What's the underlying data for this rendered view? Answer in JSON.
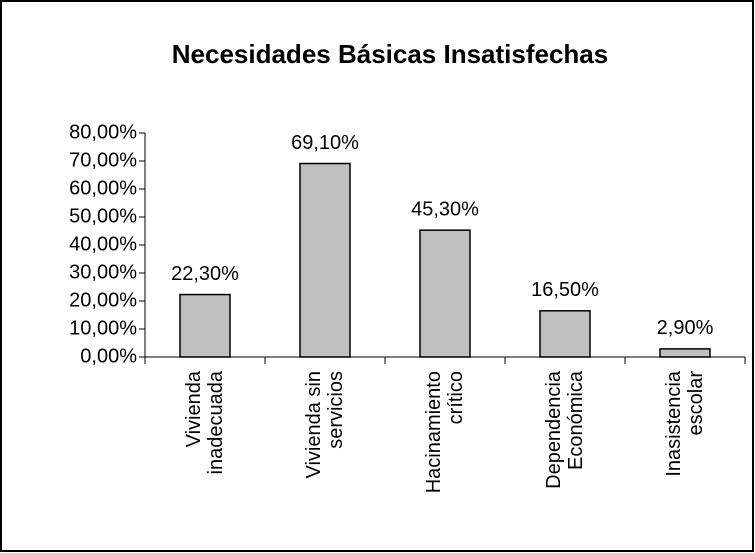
{
  "chart_data": {
    "type": "bar",
    "title": "Necesidades Básicas Insatisfechas",
    "categories": [
      "Vivienda inadecuada",
      "Vivienda sin servicios",
      "Hacinamiento crítico",
      "Dependencia Económica",
      "Inasistencia escolar"
    ],
    "values": [
      22.3,
      69.1,
      45.3,
      16.5,
      2.9
    ],
    "value_labels": [
      "22,30%",
      "69,10%",
      "45,30%",
      "16,50%",
      "2,90%"
    ],
    "color": "#c0c0c0",
    "ylim": [
      0,
      80
    ],
    "yticks": [
      {
        "value": 0,
        "label": "0,00%"
      },
      {
        "value": 10,
        "label": "10,00%"
      },
      {
        "value": 20,
        "label": "20,00%"
      },
      {
        "value": 30,
        "label": "30,00%"
      },
      {
        "value": 40,
        "label": "40,00%"
      },
      {
        "value": 50,
        "label": "50,00%"
      },
      {
        "value": 60,
        "label": "60,00%"
      },
      {
        "value": 70,
        "label": "70,00%"
      },
      {
        "value": 80,
        "label": "80,00%"
      }
    ],
    "grid": false
  }
}
